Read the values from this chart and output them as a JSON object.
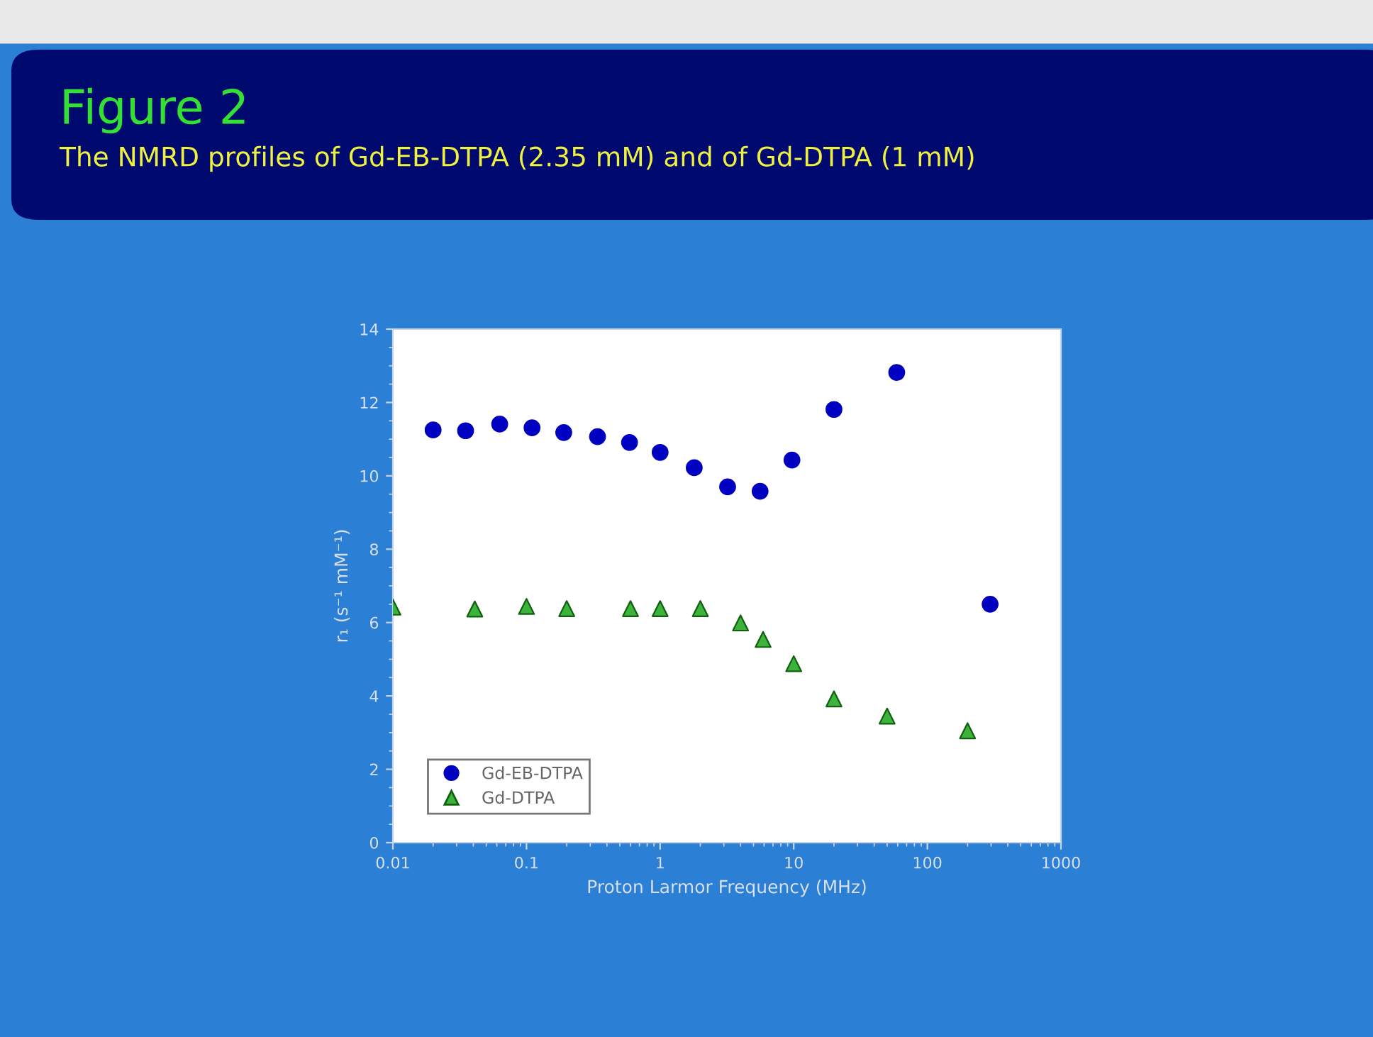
{
  "chart_data": {
    "type": "scatter",
    "title": "Figure 2",
    "subtitle": "The NMRD profiles of Gd-EB-DTPA (2.35 mM) and of Gd-DTPA (1 mM)",
    "xlabel": "Proton Larmor Frequency (MHz)",
    "ylabel": "r₁ (s⁻¹ mM⁻¹)",
    "log": "x",
    "xlim": [
      0.01,
      1000
    ],
    "xticks": [
      0.01,
      0.1,
      1,
      10,
      100,
      1000
    ],
    "ylim": [
      0,
      14
    ],
    "yticks": [
      0,
      2,
      4,
      6,
      8,
      10,
      12,
      14
    ],
    "grid": false,
    "legend": "bottom left",
    "series": [
      {
        "name": "Gd-EB-DTPA",
        "color": "#0000c0",
        "marker": "circle",
        "x": [
          0.02,
          0.035,
          0.063,
          0.11,
          0.19,
          0.34,
          0.59,
          1.0,
          1.8,
          3.2,
          5.6,
          9.7,
          20,
          59,
          295
        ],
        "values": [
          11.25,
          11.23,
          11.41,
          11.31,
          11.18,
          11.07,
          10.91,
          10.64,
          10.22,
          9.7,
          9.58,
          10.43,
          11.81,
          12.82,
          6.5
        ]
      },
      {
        "name": "Gd-DTPA",
        "color": "#3cb43c",
        "marker": "triangle",
        "x": [
          0.01,
          0.041,
          0.1,
          0.2,
          0.6,
          1.0,
          2.0,
          4.0,
          5.9,
          10,
          20,
          50,
          200
        ],
        "values": [
          6.42,
          6.37,
          6.44,
          6.38,
          6.38,
          6.38,
          6.38,
          5.99,
          5.54,
          4.88,
          3.92,
          3.45,
          3.05
        ]
      }
    ]
  }
}
